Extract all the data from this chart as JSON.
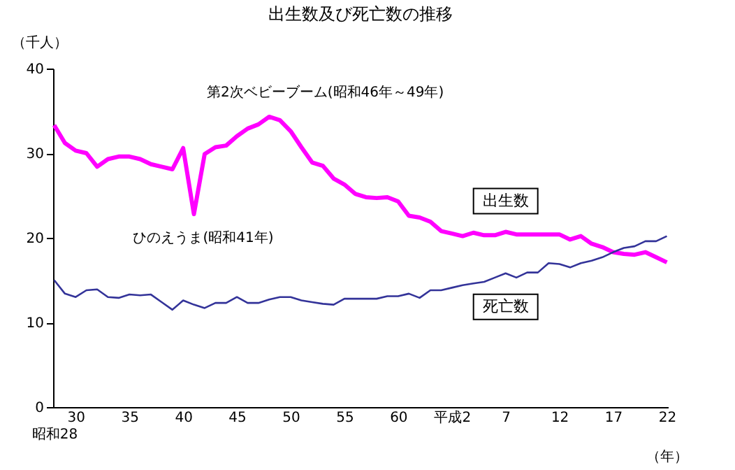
{
  "chart_data": {
    "type": "line",
    "title": "出生数及び死亡数の推移",
    "ylabel": "（千人）",
    "xlabel": "（年）",
    "categories": [
      "昭和28",
      null,
      "30",
      null,
      null,
      null,
      null,
      "35",
      null,
      null,
      null,
      null,
      "40",
      null,
      null,
      null,
      null,
      "45",
      null,
      null,
      null,
      null,
      "50",
      null,
      null,
      null,
      null,
      "55",
      null,
      null,
      null,
      null,
      "60",
      null,
      null,
      null,
      null,
      "平成2",
      null,
      null,
      null,
      null,
      "7",
      null,
      null,
      null,
      null,
      "12",
      null,
      null,
      null,
      null,
      "17",
      null,
      null,
      null,
      null,
      "22"
    ],
    "series": [
      {
        "name": "出生数",
        "color": "#ff00ff",
        "values": [
          33.3,
          31.2,
          30.3,
          30.0,
          28.4,
          29.3,
          29.6,
          29.6,
          29.3,
          28.7,
          28.4,
          28.1,
          30.6,
          22.8,
          29.9,
          30.7,
          30.9,
          32.0,
          32.9,
          33.4,
          34.3,
          33.9,
          32.6,
          30.7,
          28.9,
          28.5,
          27.0,
          26.3,
          25.2,
          24.8,
          24.7,
          24.8,
          24.3,
          22.6,
          22.4,
          21.9,
          20.8,
          20.5,
          20.2,
          20.6,
          20.3,
          20.3,
          20.7,
          20.4,
          20.4,
          20.4,
          20.4,
          20.4,
          19.8,
          20.2,
          19.3,
          18.9,
          18.3,
          18.1,
          18.0,
          18.3,
          17.7,
          17.1
        ]
      },
      {
        "name": "死亡数",
        "color": "#333399",
        "values": [
          15.0,
          13.4,
          13.0,
          13.8,
          13.9,
          13.0,
          12.9,
          13.3,
          13.2,
          13.3,
          12.4,
          11.5,
          12.6,
          12.1,
          11.7,
          12.3,
          12.3,
          13.0,
          12.3,
          12.3,
          12.7,
          13.0,
          13.0,
          12.6,
          12.4,
          12.2,
          12.1,
          12.8,
          12.8,
          12.8,
          12.8,
          13.1,
          13.1,
          13.4,
          12.9,
          13.8,
          13.8,
          14.1,
          14.4,
          14.6,
          14.8,
          15.3,
          15.8,
          15.3,
          15.9,
          15.9,
          17.0,
          16.9,
          16.5,
          17.0,
          17.3,
          17.7,
          18.3,
          18.8,
          19.0,
          19.6,
          19.6,
          20.2
        ]
      }
    ],
    "annotations": [
      "第2次ベビーブーム(昭和46年～49年)",
      "ひのえうま(昭和41年)"
    ],
    "ylim": [
      0,
      40
    ],
    "yticks": [
      0,
      10,
      20,
      30,
      40
    ],
    "grid": false,
    "legend": false
  }
}
